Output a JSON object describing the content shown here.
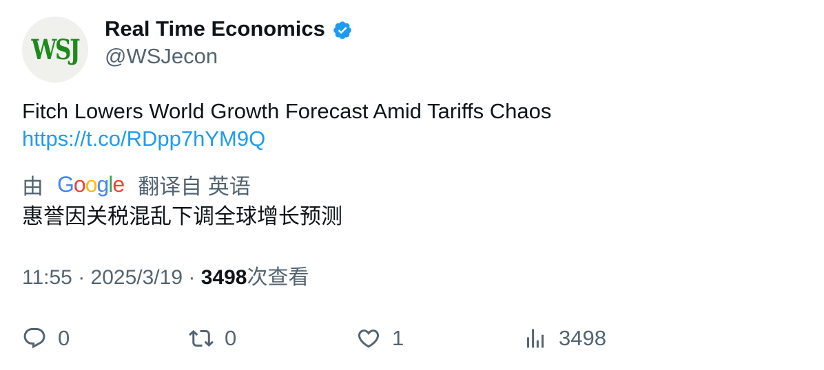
{
  "account": {
    "avatar_text": "WSJ",
    "display_name": "Real Time Economics",
    "handle": "@WSJecon",
    "verified_icon": "verified-badge-icon",
    "brand_color": "#1d8a1d"
  },
  "tweet": {
    "text": "Fitch Lowers World Growth Forecast Amid Tariffs Chaos",
    "link": "https://t.co/RDpp7hYM9Q",
    "link_color": "#1d9bf0"
  },
  "translation": {
    "prefix": "由",
    "provider": "Google",
    "suffix": "翻译自 英语",
    "text": "惠誉因关税混乱下调全球增长预测"
  },
  "meta": {
    "time": "11:55",
    "separator": "·",
    "date": "2025/3/19",
    "views_count": "3498",
    "views_label": "次查看"
  },
  "actions": {
    "reply_count": "0",
    "retweet_count": "0",
    "like_count": "1",
    "views_count": "3498"
  }
}
